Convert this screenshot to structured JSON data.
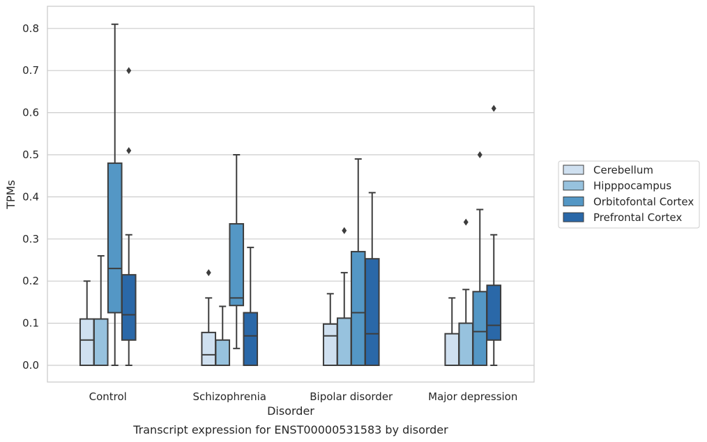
{
  "caption": "Transcript expression for ENST00000531583 by disorder",
  "chart_data": {
    "type": "boxplot",
    "xlabel": "Disorder",
    "ylabel": "TPMs",
    "ylim": [
      -0.04,
      0.85
    ],
    "yticks": [
      0.0,
      0.1,
      0.2,
      0.3,
      0.4,
      0.5,
      0.6,
      0.7,
      0.8
    ],
    "ytick_labels": [
      "0.0",
      "0.1",
      "0.2",
      "0.3",
      "0.4",
      "0.5",
      "0.6",
      "0.7",
      "0.8"
    ],
    "grid": "horizontal",
    "legend_position": "right",
    "categories": [
      "Control",
      "Schizophrenia",
      "Bipolar disorder",
      "Major depression"
    ],
    "series": [
      {
        "name": "Cerebellum",
        "color": "#cfe0f0",
        "boxes": [
          {
            "min": 0.0,
            "q1": 0.0,
            "median": 0.06,
            "q3": 0.11,
            "max": 0.2,
            "outliers": []
          },
          {
            "min": 0.0,
            "q1": 0.0,
            "median": 0.025,
            "q3": 0.078,
            "max": 0.16,
            "outliers": [
              0.22
            ]
          },
          {
            "min": 0.0,
            "q1": 0.0,
            "median": 0.07,
            "q3": 0.098,
            "max": 0.17,
            "outliers": []
          },
          {
            "min": 0.0,
            "q1": 0.0,
            "median": 0.0,
            "q3": 0.075,
            "max": 0.16,
            "outliers": []
          }
        ]
      },
      {
        "name": "Hipppocampus",
        "color": "#97c2de",
        "boxes": [
          {
            "min": 0.0,
            "q1": 0.0,
            "median": 0.0,
            "q3": 0.11,
            "max": 0.26,
            "outliers": []
          },
          {
            "min": 0.0,
            "q1": 0.0,
            "median": 0.0,
            "q3": 0.06,
            "max": 0.14,
            "outliers": []
          },
          {
            "min": 0.0,
            "q1": 0.0,
            "median": 0.0,
            "q3": 0.112,
            "max": 0.22,
            "outliers": [
              0.32
            ]
          },
          {
            "min": 0.0,
            "q1": 0.0,
            "median": 0.0,
            "q3": 0.1,
            "max": 0.18,
            "outliers": [
              0.34
            ]
          }
        ]
      },
      {
        "name": "Orbitofontal Cortex",
        "color": "#5497c5",
        "boxes": [
          {
            "min": 0.0,
            "q1": 0.125,
            "median": 0.23,
            "q3": 0.48,
            "max": 0.81,
            "outliers": []
          },
          {
            "min": 0.04,
            "q1": 0.142,
            "median": 0.16,
            "q3": 0.336,
            "max": 0.5,
            "outliers": []
          },
          {
            "min": 0.0,
            "q1": 0.0,
            "median": 0.125,
            "q3": 0.27,
            "max": 0.49,
            "outliers": []
          },
          {
            "min": 0.0,
            "q1": 0.0,
            "median": 0.08,
            "q3": 0.175,
            "max": 0.37,
            "outliers": [
              0.5
            ]
          }
        ]
      },
      {
        "name": "Prefrontal Cortex",
        "color": "#2a68a8",
        "boxes": [
          {
            "min": 0.0,
            "q1": 0.06,
            "median": 0.12,
            "q3": 0.215,
            "max": 0.31,
            "outliers": [
              0.51,
              0.7
            ]
          },
          {
            "min": 0.0,
            "q1": 0.0,
            "median": 0.07,
            "q3": 0.125,
            "max": 0.28,
            "outliers": []
          },
          {
            "min": 0.0,
            "q1": 0.0,
            "median": 0.075,
            "q3": 0.253,
            "max": 0.41,
            "outliers": []
          },
          {
            "min": 0.0,
            "q1": 0.06,
            "median": 0.095,
            "q3": 0.19,
            "max": 0.31,
            "outliers": [
              0.61
            ]
          }
        ]
      }
    ]
  }
}
